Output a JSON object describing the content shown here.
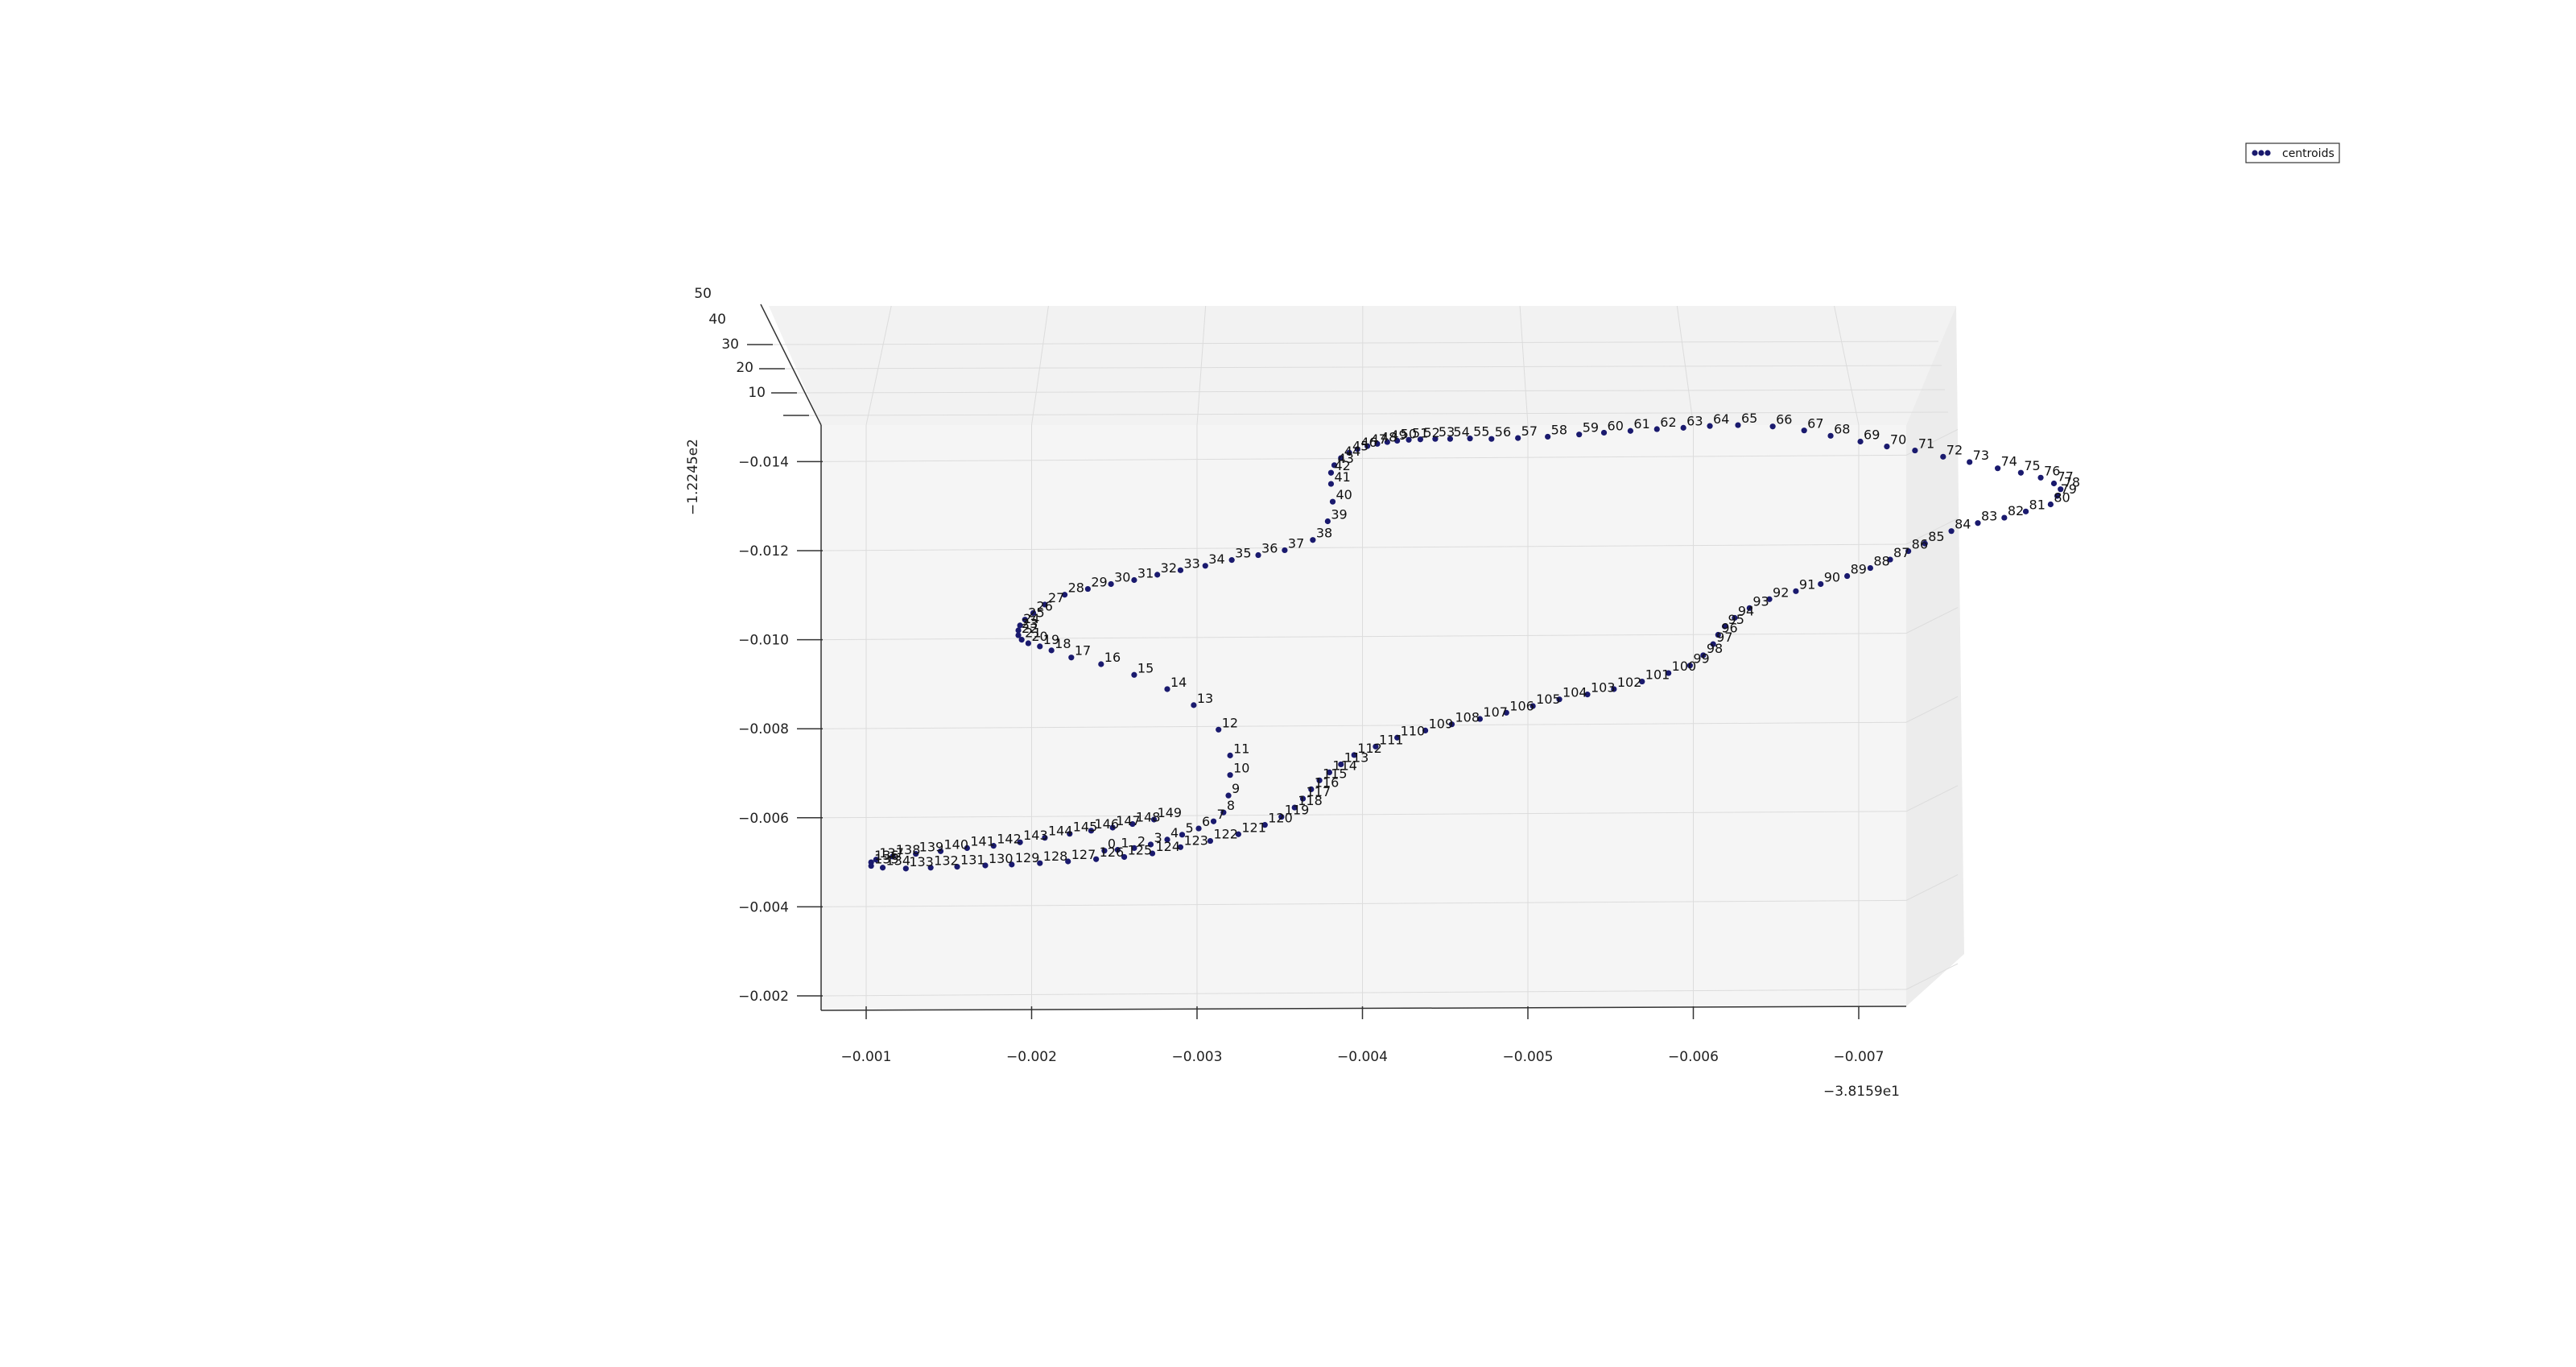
{
  "chart_data": {
    "type": "scatter",
    "projection": "3d",
    "legend_position": "top-right",
    "grid": true,
    "colors": {
      "point": "#1a1a6e",
      "pane": "#f2f2f2",
      "grid": "#dcdcdc"
    },
    "legend": {
      "label": "centroids",
      "marker_count": 3
    },
    "x_axis": {
      "ticks": [
        "−0.001",
        "−0.002",
        "−0.003",
        "−0.004",
        "−0.005",
        "−0.006",
        "−0.007"
      ],
      "offset": "−3.8159e1"
    },
    "y_axis": {
      "ticks": [
        "−0.002",
        "−0.004",
        "−0.006",
        "−0.008",
        "−0.010",
        "−0.012",
        "−0.014"
      ],
      "offset": "−1.2245e2"
    },
    "z_axis": {
      "ticks": [
        "10",
        "20",
        "30",
        "40",
        "50"
      ]
    },
    "series": [
      {
        "name": "centroids",
        "points": [
          {
            "label": "0",
            "x": -0.00244,
            "y": -0.00526
          },
          {
            "label": "1",
            "x": -0.00252,
            "y": -0.00528
          },
          {
            "label": "2",
            "x": -0.00262,
            "y": -0.00532
          },
          {
            "label": "3",
            "x": -0.00272,
            "y": -0.0054
          },
          {
            "label": "4",
            "x": -0.00282,
            "y": -0.00551
          },
          {
            "label": "5",
            "x": -0.00291,
            "y": -0.00562
          },
          {
            "label": "6",
            "x": -0.00301,
            "y": -0.00576
          },
          {
            "label": "7",
            "x": -0.0031,
            "y": -0.00592
          },
          {
            "label": "8",
            "x": -0.00316,
            "y": -0.00612
          },
          {
            "label": "9",
            "x": -0.00319,
            "y": -0.0065
          },
          {
            "label": "10",
            "x": -0.0032,
            "y": -0.00696
          },
          {
            "label": "11",
            "x": -0.0032,
            "y": -0.0074
          },
          {
            "label": "12",
            "x": -0.00313,
            "y": -0.00798
          },
          {
            "label": "13",
            "x": -0.00298,
            "y": -0.00853
          },
          {
            "label": "14",
            "x": -0.00282,
            "y": -0.00889
          },
          {
            "label": "15",
            "x": -0.00262,
            "y": -0.00921
          },
          {
            "label": "16",
            "x": -0.00242,
            "y": -0.00945
          },
          {
            "label": "17",
            "x": -0.00224,
            "y": -0.0096
          },
          {
            "label": "18",
            "x": -0.00212,
            "y": -0.00976
          },
          {
            "label": "19",
            "x": -0.00205,
            "y": -0.00985
          },
          {
            "label": "20",
            "x": -0.00198,
            "y": -0.00992
          },
          {
            "label": "21",
            "x": -0.00194,
            "y": -0.01
          },
          {
            "label": "22",
            "x": -0.00192,
            "y": -0.0101
          },
          {
            "label": "23",
            "x": -0.00192,
            "y": -0.01021
          },
          {
            "label": "24",
            "x": -0.00193,
            "y": -0.01032
          },
          {
            "label": "25",
            "x": -0.00196,
            "y": -0.01045
          },
          {
            "label": "26",
            "x": -0.00201,
            "y": -0.0106
          },
          {
            "label": "27",
            "x": -0.00208,
            "y": -0.01079
          },
          {
            "label": "28",
            "x": -0.0022,
            "y": -0.01101
          },
          {
            "label": "29",
            "x": -0.00234,
            "y": -0.01114
          },
          {
            "label": "30",
            "x": -0.00248,
            "y": -0.01125
          },
          {
            "label": "31",
            "x": -0.00262,
            "y": -0.01134
          },
          {
            "label": "32",
            "x": -0.00276,
            "y": -0.01146
          },
          {
            "label": "33",
            "x": -0.0029,
            "y": -0.01156
          },
          {
            "label": "34",
            "x": -0.00305,
            "y": -0.01166
          },
          {
            "label": "35",
            "x": -0.00321,
            "y": -0.01179
          },
          {
            "label": "36",
            "x": -0.00337,
            "y": -0.0119
          },
          {
            "label": "37",
            "x": -0.00353,
            "y": -0.01201
          },
          {
            "label": "38",
            "x": -0.0037,
            "y": -0.01224
          },
          {
            "label": "39",
            "x": -0.00379,
            "y": -0.01266
          },
          {
            "label": "40",
            "x": -0.00382,
            "y": -0.0131
          },
          {
            "label": "41",
            "x": -0.00381,
            "y": -0.0135
          },
          {
            "label": "42",
            "x": -0.00381,
            "y": -0.01375
          },
          {
            "label": "43",
            "x": -0.00383,
            "y": -0.01392
          },
          {
            "label": "44",
            "x": -0.00387,
            "y": -0.01408
          },
          {
            "label": "45",
            "x": -0.00392,
            "y": -0.0142
          },
          {
            "label": "46",
            "x": -0.00397,
            "y": -0.01428
          },
          {
            "label": "47",
            "x": -0.00403,
            "y": -0.01435
          },
          {
            "label": "48",
            "x": -0.00409,
            "y": -0.0144
          },
          {
            "label": "49",
            "x": -0.00415,
            "y": -0.01444
          },
          {
            "label": "50",
            "x": -0.00421,
            "y": -0.01447
          },
          {
            "label": "51",
            "x": -0.00428,
            "y": -0.01449
          },
          {
            "label": "52",
            "x": -0.00435,
            "y": -0.0145
          },
          {
            "label": "53",
            "x": -0.00444,
            "y": -0.01451
          },
          {
            "label": "54",
            "x": -0.00453,
            "y": -0.01451
          },
          {
            "label": "55",
            "x": -0.00465,
            "y": -0.01452
          },
          {
            "label": "56",
            "x": -0.00478,
            "y": -0.01451
          },
          {
            "label": "57",
            "x": -0.00494,
            "y": -0.01453
          },
          {
            "label": "58",
            "x": -0.00512,
            "y": -0.01456
          },
          {
            "label": "59",
            "x": -0.00531,
            "y": -0.01461
          },
          {
            "label": "60",
            "x": -0.00546,
            "y": -0.01465
          },
          {
            "label": "61",
            "x": -0.00562,
            "y": -0.01469
          },
          {
            "label": "62",
            "x": -0.00578,
            "y": -0.01473
          },
          {
            "label": "63",
            "x": -0.00594,
            "y": -0.01476
          },
          {
            "label": "64",
            "x": -0.0061,
            "y": -0.0148
          },
          {
            "label": "65",
            "x": -0.00627,
            "y": -0.01482
          },
          {
            "label": "66",
            "x": -0.00648,
            "y": -0.01479
          },
          {
            "label": "67",
            "x": -0.00667,
            "y": -0.0147
          },
          {
            "label": "68",
            "x": -0.00683,
            "y": -0.01458
          },
          {
            "label": "69",
            "x": -0.00701,
            "y": -0.01445
          },
          {
            "label": "70",
            "x": -0.00717,
            "y": -0.01434
          },
          {
            "label": "71",
            "x": -0.00734,
            "y": -0.01425
          },
          {
            "label": "72",
            "x": -0.00751,
            "y": -0.01411
          },
          {
            "label": "73",
            "x": -0.00767,
            "y": -0.01399
          },
          {
            "label": "74",
            "x": -0.00784,
            "y": -0.01385
          },
          {
            "label": "75",
            "x": -0.00798,
            "y": -0.01375
          },
          {
            "label": "76",
            "x": -0.0081,
            "y": -0.01364
          },
          {
            "label": "77",
            "x": -0.00818,
            "y": -0.01351
          },
          {
            "label": "78",
            "x": -0.00822,
            "y": -0.01338
          },
          {
            "label": "79",
            "x": -0.0082,
            "y": -0.01323
          },
          {
            "label": "80",
            "x": -0.00816,
            "y": -0.01304
          },
          {
            "label": "81",
            "x": -0.00801,
            "y": -0.01288
          },
          {
            "label": "82",
            "x": -0.00788,
            "y": -0.01274
          },
          {
            "label": "83",
            "x": -0.00772,
            "y": -0.01262
          },
          {
            "label": "84",
            "x": -0.00756,
            "y": -0.01244
          },
          {
            "label": "85",
            "x": -0.0074,
            "y": -0.01216
          },
          {
            "label": "86",
            "x": -0.0073,
            "y": -0.01199
          },
          {
            "label": "87",
            "x": -0.00719,
            "y": -0.0118
          },
          {
            "label": "88",
            "x": -0.00707,
            "y": -0.01161
          },
          {
            "label": "89",
            "x": -0.00693,
            "y": -0.01143
          },
          {
            "label": "90",
            "x": -0.00677,
            "y": -0.01125
          },
          {
            "label": "91",
            "x": -0.00662,
            "y": -0.01109
          },
          {
            "label": "92",
            "x": -0.00646,
            "y": -0.01091
          },
          {
            "label": "93",
            "x": -0.00634,
            "y": -0.01071
          },
          {
            "label": "94",
            "x": -0.00625,
            "y": -0.01049
          },
          {
            "label": "95",
            "x": -0.00619,
            "y": -0.0103
          },
          {
            "label": "96",
            "x": -0.00615,
            "y": -0.01011
          },
          {
            "label": "97",
            "x": -0.00612,
            "y": -0.0099
          },
          {
            "label": "98",
            "x": -0.00606,
            "y": -0.00965
          },
          {
            "label": "99",
            "x": -0.00598,
            "y": -0.00942
          },
          {
            "label": "100",
            "x": -0.00585,
            "y": -0.00925
          },
          {
            "label": "101",
            "x": -0.00569,
            "y": -0.00906
          },
          {
            "label": "102",
            "x": -0.00552,
            "y": -0.00889
          },
          {
            "label": "103",
            "x": -0.00536,
            "y": -0.00877
          },
          {
            "label": "104",
            "x": -0.00519,
            "y": -0.00866
          },
          {
            "label": "105",
            "x": -0.00503,
            "y": -0.00851
          },
          {
            "label": "106",
            "x": -0.00487,
            "y": -0.00836
          },
          {
            "label": "107",
            "x": -0.00471,
            "y": -0.00822
          },
          {
            "label": "108",
            "x": -0.00454,
            "y": -0.0081
          },
          {
            "label": "109",
            "x": -0.00438,
            "y": -0.00796
          },
          {
            "label": "110",
            "x": -0.00421,
            "y": -0.0078
          },
          {
            "label": "111",
            "x": -0.00408,
            "y": -0.0076
          },
          {
            "label": "112",
            "x": -0.00395,
            "y": -0.00741
          },
          {
            "label": "113",
            "x": -0.00387,
            "y": -0.0072
          },
          {
            "label": "114",
            "x": -0.0038,
            "y": -0.00702
          },
          {
            "label": "115",
            "x": -0.00374,
            "y": -0.00684
          },
          {
            "label": "116",
            "x": -0.00369,
            "y": -0.00664
          },
          {
            "label": "117",
            "x": -0.00364,
            "y": -0.00643
          },
          {
            "label": "118",
            "x": -0.00359,
            "y": -0.00623
          },
          {
            "label": "119",
            "x": -0.00351,
            "y": -0.00602
          },
          {
            "label": "120",
            "x": -0.00341,
            "y": -0.00584
          },
          {
            "label": "121",
            "x": -0.00325,
            "y": -0.00563
          },
          {
            "label": "122",
            "x": -0.00308,
            "y": -0.00548
          },
          {
            "label": "123",
            "x": -0.0029,
            "y": -0.00534
          },
          {
            "label": "124",
            "x": -0.00273,
            "y": -0.0052
          },
          {
            "label": "125",
            "x": -0.00256,
            "y": -0.00512
          },
          {
            "label": "126",
            "x": -0.00239,
            "y": -0.00507
          },
          {
            "label": "127",
            "x": -0.00222,
            "y": -0.00502
          },
          {
            "label": "128",
            "x": -0.00205,
            "y": -0.00498
          },
          {
            "label": "129",
            "x": -0.00188,
            "y": -0.00495
          },
          {
            "label": "130",
            "x": -0.00172,
            "y": -0.00493
          },
          {
            "label": "131",
            "x": -0.00155,
            "y": -0.0049
          },
          {
            "label": "132",
            "x": -0.00139,
            "y": -0.00488
          },
          {
            "label": "133",
            "x": -0.00124,
            "y": -0.00486
          },
          {
            "label": "134",
            "x": -0.0011,
            "y": -0.00488
          },
          {
            "label": "135",
            "x": -0.00103,
            "y": -0.00492
          },
          {
            "label": "136",
            "x": -0.00103,
            "y": -0.005
          },
          {
            "label": "137",
            "x": -0.00106,
            "y": -0.00506
          },
          {
            "label": "138",
            "x": -0.00116,
            "y": -0.00513
          },
          {
            "label": "139",
            "x": -0.0013,
            "y": -0.00519
          },
          {
            "label": "140",
            "x": -0.00145,
            "y": -0.00525
          },
          {
            "label": "141",
            "x": -0.00161,
            "y": -0.00532
          },
          {
            "label": "142",
            "x": -0.00177,
            "y": -0.00537
          },
          {
            "label": "143",
            "x": -0.00193,
            "y": -0.00545
          },
          {
            "label": "144",
            "x": -0.00208,
            "y": -0.00555
          },
          {
            "label": "145",
            "x": -0.00223,
            "y": -0.00564
          },
          {
            "label": "146",
            "x": -0.00236,
            "y": -0.00571
          },
          {
            "label": "147",
            "x": -0.00249,
            "y": -0.00578
          },
          {
            "label": "148",
            "x": -0.00261,
            "y": -0.00586
          },
          {
            "label": "149",
            "x": -0.00274,
            "y": -0.00596
          }
        ]
      }
    ]
  }
}
